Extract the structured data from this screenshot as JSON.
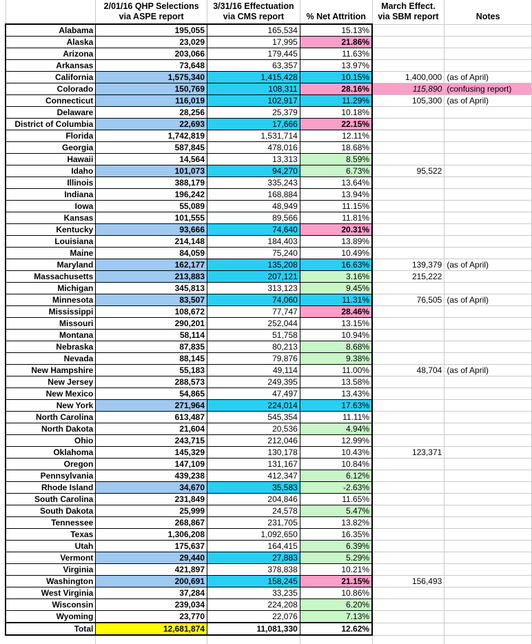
{
  "colors": {
    "blue": "#9FC9F0",
    "cyan": "#29CFF2",
    "green": "#C9F6C9",
    "pink": "#F99FC8",
    "yellow": "#FFFF00",
    "grid": "#C9C9C9",
    "ink": "#000000"
  },
  "chart_data": {
    "type": "table",
    "title": "",
    "columns": [
      {
        "id": "state",
        "line1": "",
        "line2": ""
      },
      {
        "id": "qhp",
        "line1": "2/01/16 QHP Selections",
        "line2": "via ASPE report"
      },
      {
        "id": "eff",
        "line1": "3/31/16 Effectuation",
        "line2": "via CMS report"
      },
      {
        "id": "attr",
        "line1": "",
        "line2": "% Net Attrition"
      },
      {
        "id": "march",
        "line1": "March Effect.",
        "line2": "via SBM report"
      },
      {
        "id": "notes",
        "line1": "",
        "line2": "Notes"
      }
    ],
    "rows": [
      {
        "state": "Alabama",
        "qhp": "195,055",
        "eff": "165,534",
        "attr": "15.13%"
      },
      {
        "state": "Alaska",
        "qhp": "23,029",
        "eff": "17,995",
        "attr": "21.86%",
        "attr_bg": "pink"
      },
      {
        "state": "Arizona",
        "qhp": "203,066",
        "eff": "179,445",
        "attr": "11.63%"
      },
      {
        "state": "Arkansas",
        "qhp": "73,648",
        "eff": "63,357",
        "attr": "13.97%"
      },
      {
        "state": "California",
        "qhp": "1,575,340",
        "eff": "1,415,428",
        "attr": "10.15%",
        "sbm": true,
        "attr_bg": "cyan",
        "march": "1,400,000",
        "note": "(as of April)"
      },
      {
        "state": "Colorado",
        "qhp": "150,769",
        "eff": "108,311",
        "attr": "28.16%",
        "sbm": true,
        "attr_bg": "pink",
        "march": "115,890",
        "march_bg": "pink",
        "march_italic": true,
        "note": "(confusing report)",
        "note_bg": "pink"
      },
      {
        "state": "Connecticut",
        "qhp": "116,019",
        "eff": "102,917",
        "attr": "11.29%",
        "sbm": true,
        "attr_bg": "cyan",
        "march": "105,300",
        "note": "(as of April)"
      },
      {
        "state": "Delaware",
        "qhp": "28,256",
        "eff": "25,379",
        "attr": "10.18%"
      },
      {
        "state": "District of Columbia",
        "qhp": "22,693",
        "eff": "17,666",
        "attr": "22.15%",
        "sbm": true,
        "attr_bg": "pink"
      },
      {
        "state": "Florida",
        "qhp": "1,742,819",
        "eff": "1,531,714",
        "attr": "12.11%"
      },
      {
        "state": "Georgia",
        "qhp": "587,845",
        "eff": "478,016",
        "attr": "18.68%"
      },
      {
        "state": "Hawaii",
        "qhp": "14,564",
        "eff": "13,313",
        "attr": "8.59%",
        "attr_bg": "green"
      },
      {
        "state": "Idaho",
        "qhp": "101,073",
        "eff": "94,270",
        "attr": "6.73%",
        "sbm": true,
        "attr_bg": "green",
        "march": "95,522"
      },
      {
        "state": "Illinois",
        "qhp": "388,179",
        "eff": "335,243",
        "attr": "13.64%"
      },
      {
        "state": "Indiana",
        "qhp": "196,242",
        "eff": "168,884",
        "attr": "13.94%"
      },
      {
        "state": "Iowa",
        "qhp": "55,089",
        "eff": "48,949",
        "attr": "11.15%"
      },
      {
        "state": "Kansas",
        "qhp": "101,555",
        "eff": "89,566",
        "attr": "11.81%"
      },
      {
        "state": "Kentucky",
        "qhp": "93,666",
        "eff": "74,640",
        "attr": "20.31%",
        "sbm": true,
        "attr_bg": "pink"
      },
      {
        "state": "Louisiana",
        "qhp": "214,148",
        "eff": "184,403",
        "attr": "13.89%"
      },
      {
        "state": "Maine",
        "qhp": "84,059",
        "eff": "75,240",
        "attr": "10.49%"
      },
      {
        "state": "Maryland",
        "qhp": "162,177",
        "eff": "135,208",
        "attr": "16.63%",
        "sbm": true,
        "attr_bg": "cyan",
        "march": "139,379",
        "note": "(as of April)"
      },
      {
        "state": "Massachusetts",
        "qhp": "213,883",
        "eff": "207,121",
        "attr": "3.16%",
        "sbm": true,
        "attr_bg": "green",
        "march": "215,222"
      },
      {
        "state": "Michigan",
        "qhp": "345,813",
        "eff": "313,123",
        "attr": "9.45%",
        "attr_bg": "green"
      },
      {
        "state": "Minnesota",
        "qhp": "83,507",
        "eff": "74,060",
        "attr": "11.31%",
        "sbm": true,
        "attr_bg": "cyan",
        "march": "76,505",
        "note": "(as of April)"
      },
      {
        "state": "Mississippi",
        "qhp": "108,672",
        "eff": "77,747",
        "attr": "28.46%",
        "attr_bg": "pink"
      },
      {
        "state": "Missouri",
        "qhp": "290,201",
        "eff": "252,044",
        "attr": "13.15%"
      },
      {
        "state": "Montana",
        "qhp": "58,114",
        "eff": "51,758",
        "attr": "10.94%"
      },
      {
        "state": "Nebraska",
        "qhp": "87,835",
        "eff": "80,213",
        "attr": "8.68%",
        "attr_bg": "green"
      },
      {
        "state": "Nevada",
        "qhp": "88,145",
        "eff": "79,876",
        "attr": "9.38%",
        "attr_bg": "green"
      },
      {
        "state": "New Hampshire",
        "qhp": "55,183",
        "eff": "49,114",
        "attr": "11.00%",
        "march": "48,704",
        "note": "(as of April)"
      },
      {
        "state": "New Jersey",
        "qhp": "288,573",
        "eff": "249,395",
        "attr": "13.58%"
      },
      {
        "state": "New Mexico",
        "qhp": "54,865",
        "eff": "47,497",
        "attr": "13.43%"
      },
      {
        "state": "New York",
        "qhp": "271,964",
        "eff": "224,014",
        "attr": "17.63%",
        "sbm": true,
        "attr_bg": "cyan"
      },
      {
        "state": "North Carolina",
        "qhp": "613,487",
        "eff": "545,354",
        "attr": "11.11%"
      },
      {
        "state": "North Dakota",
        "qhp": "21,604",
        "eff": "20,536",
        "attr": "4.94%",
        "attr_bg": "green"
      },
      {
        "state": "Ohio",
        "qhp": "243,715",
        "eff": "212,046",
        "attr": "12.99%"
      },
      {
        "state": "Oklahoma",
        "qhp": "145,329",
        "eff": "130,178",
        "attr": "10.43%",
        "march": "123,371"
      },
      {
        "state": "Oregon",
        "qhp": "147,109",
        "eff": "131,167",
        "attr": "10.84%"
      },
      {
        "state": "Pennsylvania",
        "qhp": "439,238",
        "eff": "412,347",
        "attr": "6.12%",
        "attr_bg": "green"
      },
      {
        "state": "Rhode Island",
        "qhp": "34,670",
        "eff": "35,583",
        "attr": "-2.63%",
        "sbm": true,
        "attr_bg": "green"
      },
      {
        "state": "South Carolina",
        "qhp": "231,849",
        "eff": "204,846",
        "attr": "11.65%"
      },
      {
        "state": "South Dakota",
        "qhp": "25,999",
        "eff": "24,578",
        "attr": "5.47%",
        "attr_bg": "green"
      },
      {
        "state": "Tennessee",
        "qhp": "268,867",
        "eff": "231,705",
        "attr": "13.82%"
      },
      {
        "state": "Texas",
        "qhp": "1,306,208",
        "eff": "1,092,650",
        "attr": "16.35%"
      },
      {
        "state": "Utah",
        "qhp": "175,637",
        "eff": "164,415",
        "attr": "6.39%",
        "attr_bg": "green"
      },
      {
        "state": "Vermont",
        "qhp": "29,440",
        "eff": "27,883",
        "attr": "5.29%",
        "sbm": true,
        "attr_bg": "green"
      },
      {
        "state": "Virginia",
        "qhp": "421,897",
        "eff": "378,838",
        "attr": "10.21%"
      },
      {
        "state": "Washington",
        "qhp": "200,691",
        "eff": "158,245",
        "attr": "21.15%",
        "sbm": true,
        "attr_bg": "pink",
        "march": "156,493"
      },
      {
        "state": "West Virginia",
        "qhp": "37,284",
        "eff": "33,235",
        "attr": "10.86%"
      },
      {
        "state": "Wisconsin",
        "qhp": "239,034",
        "eff": "224,208",
        "attr": "6.20%",
        "attr_bg": "green"
      },
      {
        "state": "Wyoming",
        "qhp": "23,770",
        "eff": "22,076",
        "attr": "7.13%",
        "attr_bg": "green"
      },
      {
        "state": "Total",
        "qhp": "12,681,874",
        "eff": "11,081,330",
        "attr": "12.62%",
        "total": true
      }
    ]
  }
}
